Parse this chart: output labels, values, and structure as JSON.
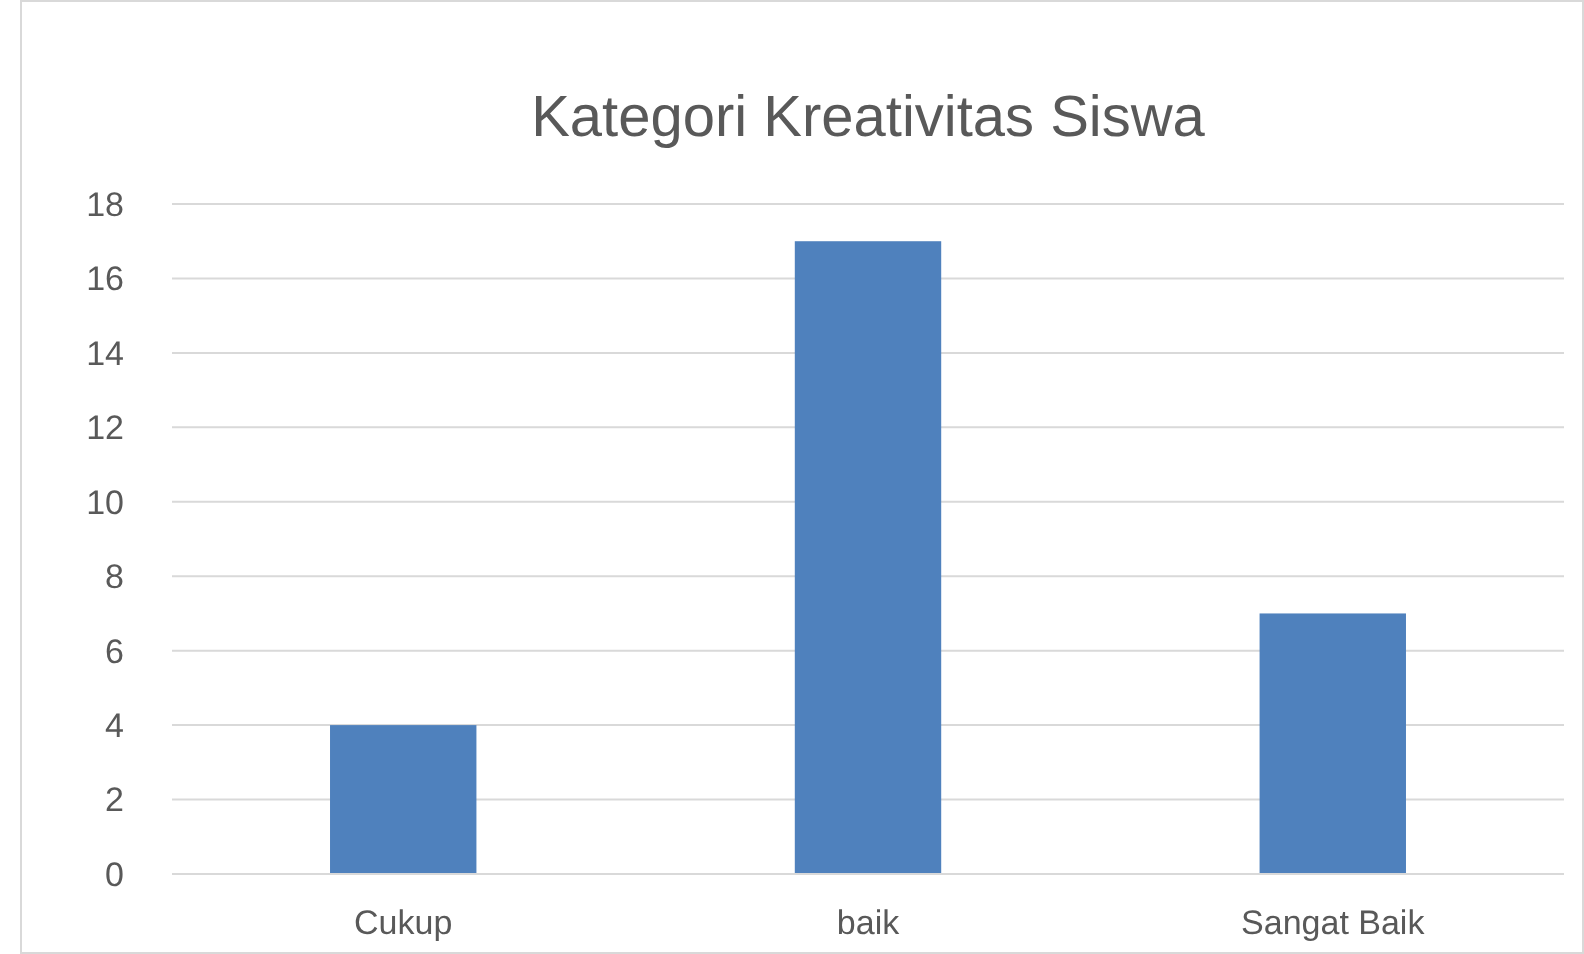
{
  "chart_data": {
    "type": "bar",
    "title": "Kategori Kreativitas Siswa",
    "categories": [
      "Cukup",
      "baik",
      "Sangat Baik"
    ],
    "values": [
      4,
      17,
      7
    ],
    "color": "#4f81bd",
    "ylim": [
      0,
      18
    ],
    "yticks": [
      0,
      2,
      4,
      6,
      8,
      10,
      12,
      14,
      16,
      18
    ],
    "grid": "y"
  }
}
